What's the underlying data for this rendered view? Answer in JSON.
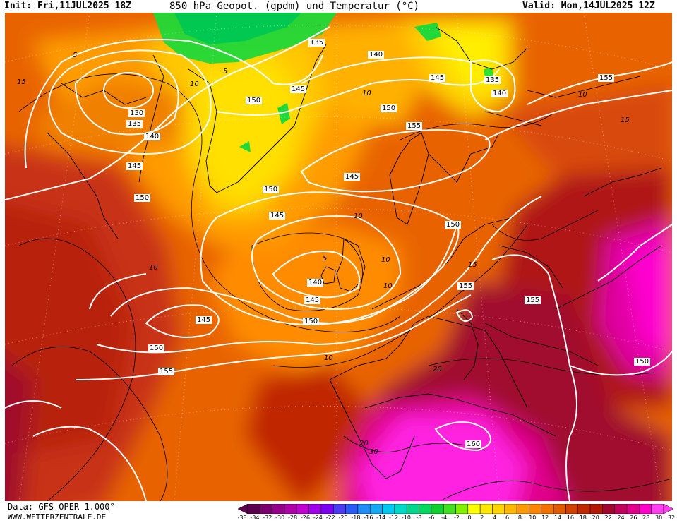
{
  "header": {
    "init": "Init: Fri,11JUL2025 18Z",
    "title": "850 hPa Geopot. (gpdm) und Temperatur (°C)",
    "valid": "Valid: Mon,14JUL2025 12Z"
  },
  "footer": {
    "data_source": "Data: GFS OPER 1.000°",
    "website": "WWW.WETTERZENTRALE.DE"
  },
  "legend": {
    "scale_labels": [
      "-38",
      "-34",
      "-32",
      "-30",
      "-28",
      "-26",
      "-24",
      "-22",
      "-20",
      "-18",
      "-16",
      "-14",
      "-12",
      "-10",
      "-8",
      "-6",
      "-4",
      "-2",
      "0",
      "2",
      "4",
      "6",
      "8",
      "10",
      "12",
      "14",
      "16",
      "18",
      "20",
      "22",
      "24",
      "26",
      "28",
      "30",
      "32"
    ],
    "colors": [
      "#5a004f",
      "#7a006f",
      "#94008a",
      "#ad00a8",
      "#c000d0",
      "#a000e8",
      "#7c00f0",
      "#4b3cf2",
      "#2a5cf5",
      "#1f8cf7",
      "#14a8f5",
      "#00c8f0",
      "#00d8c8",
      "#00d890",
      "#00d860",
      "#10d030",
      "#40e020",
      "#80f000",
      "#ffff00",
      "#ffe800",
      "#ffd400",
      "#ffb800",
      "#ff9a00",
      "#ff8400",
      "#f07000",
      "#e05a00",
      "#d04000",
      "#c02800",
      "#b01800",
      "#a00830",
      "#c0005a",
      "#e0008a",
      "#ff00c8",
      "#ff40f0"
    ]
  },
  "map_labels": {
    "geopotential": [
      {
        "text": "130"
      },
      {
        "text": "135"
      },
      {
        "text": "140"
      },
      {
        "text": "145"
      },
      {
        "text": "150"
      },
      {
        "text": "135"
      },
      {
        "text": "145"
      },
      {
        "text": "150"
      },
      {
        "text": "140"
      },
      {
        "text": "145"
      },
      {
        "text": "135"
      },
      {
        "text": "140"
      },
      {
        "text": "155"
      },
      {
        "text": "150"
      },
      {
        "text": "155"
      },
      {
        "text": "145"
      },
      {
        "text": "150"
      },
      {
        "text": "145"
      },
      {
        "text": "140"
      },
      {
        "text": "145"
      },
      {
        "text": "150"
      },
      {
        "text": "150"
      },
      {
        "text": "155"
      },
      {
        "text": "155"
      },
      {
        "text": "155"
      },
      {
        "text": "150"
      },
      {
        "text": "160"
      },
      {
        "text": "145"
      },
      {
        "text": "150"
      }
    ],
    "temperature": [
      {
        "text": "5"
      },
      {
        "text": "10"
      },
      {
        "text": "15"
      },
      {
        "text": "5"
      },
      {
        "text": "10"
      },
      {
        "text": "5"
      },
      {
        "text": "10"
      },
      {
        "text": "10"
      },
      {
        "text": "10"
      },
      {
        "text": "10"
      },
      {
        "text": "15"
      },
      {
        "text": "10"
      },
      {
        "text": "20"
      },
      {
        "text": "20"
      },
      {
        "text": "30"
      },
      {
        "text": "15"
      },
      {
        "text": "10"
      }
    ]
  }
}
